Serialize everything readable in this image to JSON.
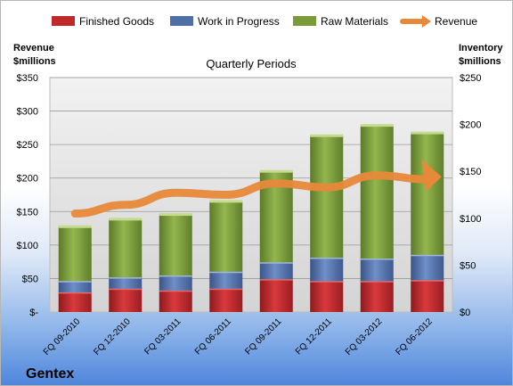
{
  "company": "Gentex",
  "chart_data": {
    "type": "bar",
    "title": "Quarterly Periods",
    "left_axis_label": [
      "Revenue",
      "$millions"
    ],
    "right_axis_label": [
      "Inventory",
      "$millions"
    ],
    "legend": [
      {
        "name": "Finished Goods",
        "color": "#c0282c"
      },
      {
        "name": "Work in Progress",
        "color": "#4f6fa8"
      },
      {
        "name": "Raw Materials",
        "color": "#7a9b3a"
      },
      {
        "name": "Revenue",
        "color": "#e8893a"
      }
    ],
    "legend_position": "top",
    "categories": [
      "FQ 09-2010",
      "FQ 12-2010",
      "FQ 03-2011",
      "FQ 06-2011",
      "FQ 09-2011",
      "FQ 12-2011",
      "FQ 03-2012",
      "FQ 06-2012"
    ],
    "left_ticks": [
      "$-",
      "$50",
      "$100",
      "$150",
      "$200",
      "$250",
      "$300",
      "$350"
    ],
    "right_ticks": [
      "$0",
      "$50",
      "$100",
      "$150",
      "$200",
      "$250"
    ],
    "ylim_left": [
      0,
      350
    ],
    "ylim_right": [
      0,
      250
    ],
    "series": [
      {
        "name": "Finished Goods",
        "axis": "right",
        "values": [
          21,
          25,
          23,
          25,
          35,
          33,
          33,
          34
        ]
      },
      {
        "name": "Work in Progress",
        "axis": "right",
        "values": [
          12,
          12,
          16,
          18,
          18,
          25,
          24,
          27
        ]
      },
      {
        "name": "Raw Materials",
        "axis": "right",
        "values": [
          58,
          62,
          65,
          75,
          97,
          130,
          142,
          130
        ]
      },
      {
        "name": "Revenue",
        "axis": "left",
        "type": "line",
        "values": [
          147,
          160,
          178,
          175,
          192,
          186,
          204,
          198
        ]
      }
    ],
    "grid": true
  }
}
